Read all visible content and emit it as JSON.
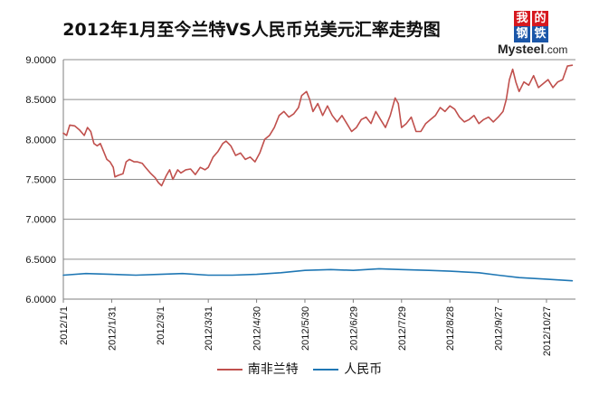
{
  "logo": {
    "chars": [
      "我",
      "的",
      "钢",
      "铁"
    ],
    "text_main": "Mysteel",
    "text_suffix": ".com"
  },
  "chart_data": {
    "type": "line",
    "title": "2012年1月至今兰特VS人民币兑美元汇率走势图",
    "xlabel": "",
    "ylabel": "",
    "ylim": [
      6.0,
      9.0
    ],
    "y_ticks": [
      "6.0000",
      "6.5000",
      "7.0000",
      "7.5000",
      "8.0000",
      "8.5000",
      "9.0000"
    ],
    "x_ticks": [
      "2012/1/1",
      "2012/1/31",
      "2012/3/1",
      "2012/3/31",
      "2012/4/30",
      "2012/5/30",
      "2012/6/29",
      "2012/7/29",
      "2012/8/28",
      "2012/9/27",
      "2012/10/27"
    ],
    "x_start": "2012-01-01",
    "x_end": "2012-11-14",
    "grid": "horizontal",
    "legend": "bottom",
    "colors": {
      "zar": "#c0504d",
      "cny": "#1f77b4"
    },
    "series": [
      {
        "name": "南非兰特",
        "color": "#c0504d",
        "points": [
          [
            "2012-01-01",
            8.08
          ],
          [
            "2012-01-03",
            8.05
          ],
          [
            "2012-01-05",
            8.18
          ],
          [
            "2012-01-08",
            8.17
          ],
          [
            "2012-01-11",
            8.12
          ],
          [
            "2012-01-14",
            8.05
          ],
          [
            "2012-01-16",
            8.15
          ],
          [
            "2012-01-18",
            8.1
          ],
          [
            "2012-01-20",
            7.95
          ],
          [
            "2012-01-22",
            7.92
          ],
          [
            "2012-01-24",
            7.95
          ],
          [
            "2012-01-26",
            7.85
          ],
          [
            "2012-01-28",
            7.75
          ],
          [
            "2012-01-30",
            7.72
          ],
          [
            "2012-02-01",
            7.65
          ],
          [
            "2012-02-02",
            7.53
          ],
          [
            "2012-02-04",
            7.55
          ],
          [
            "2012-02-07",
            7.57
          ],
          [
            "2012-02-09",
            7.72
          ],
          [
            "2012-02-11",
            7.75
          ],
          [
            "2012-02-14",
            7.72
          ],
          [
            "2012-02-16",
            7.72
          ],
          [
            "2012-02-19",
            7.7
          ],
          [
            "2012-02-21",
            7.65
          ],
          [
            "2012-02-24",
            7.58
          ],
          [
            "2012-02-27",
            7.52
          ],
          [
            "2012-02-29",
            7.46
          ],
          [
            "2012-03-02",
            7.42
          ],
          [
            "2012-03-05",
            7.55
          ],
          [
            "2012-03-07",
            7.62
          ],
          [
            "2012-03-09",
            7.5
          ],
          [
            "2012-03-12",
            7.62
          ],
          [
            "2012-03-14",
            7.58
          ],
          [
            "2012-03-17",
            7.62
          ],
          [
            "2012-03-20",
            7.63
          ],
          [
            "2012-03-23",
            7.56
          ],
          [
            "2012-03-26",
            7.65
          ],
          [
            "2012-03-29",
            7.62
          ],
          [
            "2012-03-31",
            7.65
          ],
          [
            "2012-04-03",
            7.78
          ],
          [
            "2012-04-06",
            7.85
          ],
          [
            "2012-04-09",
            7.95
          ],
          [
            "2012-04-11",
            7.98
          ],
          [
            "2012-04-14",
            7.92
          ],
          [
            "2012-04-17",
            7.8
          ],
          [
            "2012-04-20",
            7.83
          ],
          [
            "2012-04-23",
            7.75
          ],
          [
            "2012-04-26",
            7.78
          ],
          [
            "2012-04-29",
            7.72
          ],
          [
            "2012-05-02",
            7.83
          ],
          [
            "2012-05-05",
            8.0
          ],
          [
            "2012-05-08",
            8.05
          ],
          [
            "2012-05-11",
            8.15
          ],
          [
            "2012-05-14",
            8.3
          ],
          [
            "2012-05-17",
            8.35
          ],
          [
            "2012-05-20",
            8.28
          ],
          [
            "2012-05-23",
            8.32
          ],
          [
            "2012-05-26",
            8.4
          ],
          [
            "2012-05-28",
            8.55
          ],
          [
            "2012-05-31",
            8.6
          ],
          [
            "2012-06-02",
            8.5
          ],
          [
            "2012-06-04",
            8.35
          ],
          [
            "2012-06-07",
            8.45
          ],
          [
            "2012-06-10",
            8.3
          ],
          [
            "2012-06-13",
            8.42
          ],
          [
            "2012-06-16",
            8.3
          ],
          [
            "2012-06-19",
            8.22
          ],
          [
            "2012-06-22",
            8.3
          ],
          [
            "2012-06-25",
            8.2
          ],
          [
            "2012-06-28",
            8.1
          ],
          [
            "2012-07-01",
            8.15
          ],
          [
            "2012-07-04",
            8.25
          ],
          [
            "2012-07-07",
            8.28
          ],
          [
            "2012-07-10",
            8.2
          ],
          [
            "2012-07-13",
            8.35
          ],
          [
            "2012-07-16",
            8.25
          ],
          [
            "2012-07-19",
            8.15
          ],
          [
            "2012-07-22",
            8.3
          ],
          [
            "2012-07-25",
            8.52
          ],
          [
            "2012-07-27",
            8.45
          ],
          [
            "2012-07-29",
            8.15
          ],
          [
            "2012-08-01",
            8.2
          ],
          [
            "2012-08-04",
            8.28
          ],
          [
            "2012-08-07",
            8.1
          ],
          [
            "2012-08-10",
            8.1
          ],
          [
            "2012-08-13",
            8.2
          ],
          [
            "2012-08-16",
            8.25
          ],
          [
            "2012-08-19",
            8.3
          ],
          [
            "2012-08-22",
            8.4
          ],
          [
            "2012-08-25",
            8.35
          ],
          [
            "2012-08-28",
            8.42
          ],
          [
            "2012-08-31",
            8.38
          ],
          [
            "2012-09-03",
            8.28
          ],
          [
            "2012-09-06",
            8.22
          ],
          [
            "2012-09-09",
            8.25
          ],
          [
            "2012-09-12",
            8.3
          ],
          [
            "2012-09-15",
            8.2
          ],
          [
            "2012-09-18",
            8.25
          ],
          [
            "2012-09-21",
            8.28
          ],
          [
            "2012-09-24",
            8.22
          ],
          [
            "2012-09-27",
            8.28
          ],
          [
            "2012-09-30",
            8.35
          ],
          [
            "2012-10-02",
            8.5
          ],
          [
            "2012-10-04",
            8.75
          ],
          [
            "2012-10-06",
            8.88
          ],
          [
            "2012-10-08",
            8.72
          ],
          [
            "2012-10-10",
            8.6
          ],
          [
            "2012-10-13",
            8.72
          ],
          [
            "2012-10-16",
            8.68
          ],
          [
            "2012-10-19",
            8.8
          ],
          [
            "2012-10-22",
            8.65
          ],
          [
            "2012-10-25",
            8.7
          ],
          [
            "2012-10-28",
            8.75
          ],
          [
            "2012-10-31",
            8.65
          ],
          [
            "2012-11-03",
            8.72
          ],
          [
            "2012-11-06",
            8.75
          ],
          [
            "2012-11-09",
            8.92
          ],
          [
            "2012-11-12",
            8.93
          ]
        ]
      },
      {
        "name": "人民币",
        "color": "#1f77b4",
        "points": [
          [
            "2012-01-01",
            6.3
          ],
          [
            "2012-01-15",
            6.32
          ],
          [
            "2012-01-31",
            6.31
          ],
          [
            "2012-02-15",
            6.3
          ],
          [
            "2012-03-01",
            6.31
          ],
          [
            "2012-03-15",
            6.32
          ],
          [
            "2012-03-31",
            6.3
          ],
          [
            "2012-04-15",
            6.3
          ],
          [
            "2012-04-30",
            6.31
          ],
          [
            "2012-05-15",
            6.33
          ],
          [
            "2012-05-30",
            6.36
          ],
          [
            "2012-06-15",
            6.37
          ],
          [
            "2012-06-29",
            6.36
          ],
          [
            "2012-07-15",
            6.38
          ],
          [
            "2012-07-29",
            6.37
          ],
          [
            "2012-08-15",
            6.36
          ],
          [
            "2012-08-28",
            6.35
          ],
          [
            "2012-09-15",
            6.33
          ],
          [
            "2012-09-27",
            6.3
          ],
          [
            "2012-10-10",
            6.27
          ],
          [
            "2012-10-27",
            6.25
          ],
          [
            "2012-11-12",
            6.23
          ]
        ]
      }
    ]
  }
}
